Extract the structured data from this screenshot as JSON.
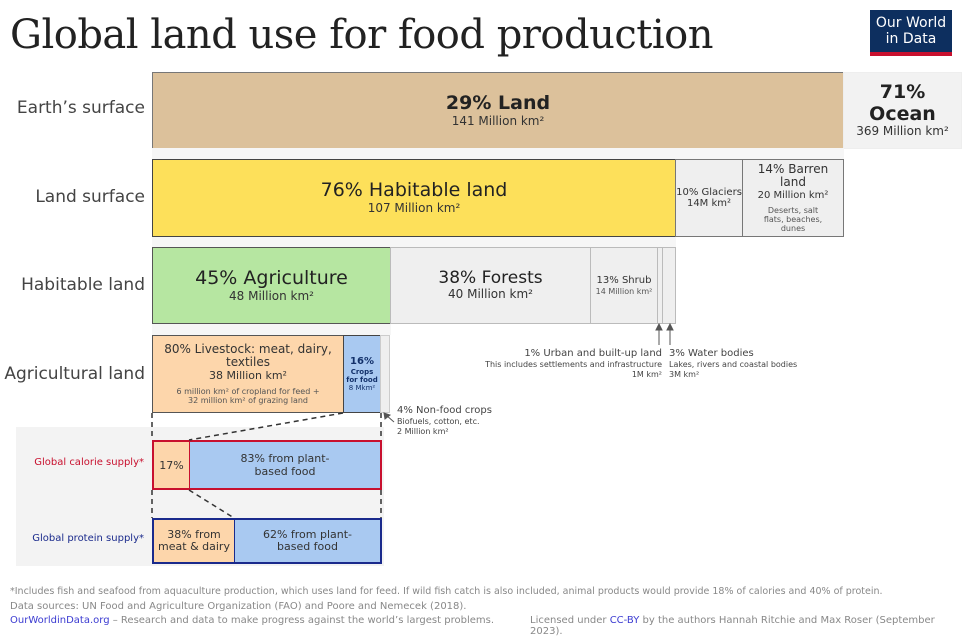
{
  "title": "Global land use for food production",
  "logo": {
    "line1": "Our World",
    "line2": "in Data"
  },
  "colors": {
    "land": "#dcc19b",
    "habitable": "#fde05a",
    "agriculture": "#b6e6a1",
    "livestock": "#fdd6ab",
    "crops": "#a9c9f1",
    "neutral": "#f0f0f0",
    "calorie_border": "#c8102e",
    "protein_border": "#1a2a8c"
  },
  "rows": {
    "earth": "Earth’s surface",
    "land": "Land surface",
    "habitable": "Habitable land",
    "agricultural": "Agricultural land",
    "calorie": "Global calorie supply*",
    "protein": "Global protein supply*"
  },
  "earth": {
    "land_pct": "29% Land",
    "land_area": "141 Million km²",
    "ocean_pct": "71% Ocean",
    "ocean_area": "369 Million km²"
  },
  "land": {
    "habitable_pct": "76% Habitable land",
    "habitable_area": "107 Million km²",
    "glaciers_pct": "10% Glaciers",
    "glaciers_area": "14M km²",
    "barren_pct": "14% Barren land",
    "barren_area": "20 Million km²",
    "barren_note": "Deserts, salt flats, beaches, dunes"
  },
  "habitable": {
    "agri_pct": "45% Agriculture",
    "agri_area": "48 Million km²",
    "forest_pct": "38% Forests",
    "forest_area": "40 Million km²",
    "shrub_pct": "13% Shrub",
    "shrub_area": "14 Million km²",
    "urban_pct": "1% Urban and built-up land",
    "urban_note": "This includes settlements and infrastructure",
    "urban_area": "1M km²",
    "water_pct": "3% Water bodies",
    "water_note": "Lakes, rivers and coastal bodies",
    "water_area": "3M km²"
  },
  "agricultural": {
    "livestock_pct": "80% Livestock: meat, dairy, textiles",
    "livestock_area": "38 Million km²",
    "livestock_note1": "6 million km² of cropland for feed +",
    "livestock_note2": "32 million km² of grazing land",
    "crops_pct": "16%",
    "crops_label": "Crops for food",
    "crops_area": "8 Mkm²",
    "nonfood_pct": "4% Non-food crops",
    "nonfood_note": "Biofuels, cotton, etc.",
    "nonfood_area": "2 Million km²"
  },
  "calorie": {
    "animal": "17%",
    "plant": "83% from plant-based food"
  },
  "protein": {
    "animal": "38% from meat & dairy",
    "plant": "62% from plant-based food"
  },
  "footer": {
    "note": "*Includes fish and seafood from aquaculture production, which uses land for feed. If wild fish catch is also included, animal products would provide 18% of calories and 40% of protein.",
    "sources": "Data sources: UN Food and Agriculture Organization (FAO) and Poore and Nemecek (2018).",
    "site": "OurWorldinData.org",
    "tagline": " – Research and data to make progress against the world’s largest problems.",
    "license_pre": "Licensed under ",
    "license_link": "CC-BY",
    "license_post": " by the authors Hannah Ritchie and Max Roser (September 2023)."
  }
}
